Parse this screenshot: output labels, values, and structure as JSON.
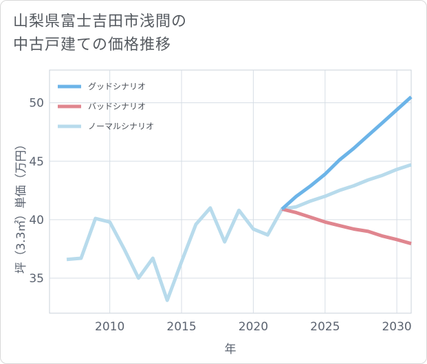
{
  "title": {
    "line1": "山梨県富士吉田市浅間の",
    "line2": "中古戸建ての価格推移"
  },
  "chart_data": {
    "type": "line",
    "title": "山梨県富士吉田市浅間の中古戸建ての価格推移",
    "xlabel": "年",
    "ylabel": "坪（3.3㎡）単価（万円）",
    "xlim": [
      2005.8,
      2031
    ],
    "ylim": [
      32,
      52.8
    ],
    "xticks": [
      2010,
      2015,
      2020,
      2025,
      2030
    ],
    "yticks": [
      35,
      40,
      45,
      50
    ],
    "xtick_labels": [
      "2010",
      "2015",
      "2020",
      "2025",
      "2030"
    ],
    "ytick_labels": [
      "35",
      "40",
      "45",
      "50"
    ],
    "grid": true,
    "legend_position": "top-left",
    "series": [
      {
        "name": "グッドシナリオ",
        "color": "#6cb4e8",
        "x": [
          2022,
          2023,
          2024,
          2025,
          2026,
          2027,
          2028,
          2029,
          2030,
          2031
        ],
        "values": [
          40.9,
          42.0,
          42.9,
          43.9,
          45.1,
          46.1,
          47.2,
          48.3,
          49.4,
          50.5
        ]
      },
      {
        "name": "バッドシナリオ",
        "color": "#e0868f",
        "x": [
          2022,
          2023,
          2024,
          2025,
          2026,
          2027,
          2028,
          2029,
          2030,
          2031
        ],
        "values": [
          40.9,
          40.6,
          40.2,
          39.8,
          39.5,
          39.2,
          39.0,
          38.6,
          38.3,
          37.95
        ]
      },
      {
        "name": "ノーマルシナリオ",
        "color": "#b8dbec",
        "x": [
          2007,
          2008,
          2009,
          2010,
          2011,
          2012,
          2013,
          2014,
          2015,
          2016,
          2017,
          2018,
          2019,
          2020,
          2021,
          2022,
          2023,
          2024,
          2025,
          2026,
          2027,
          2028,
          2029,
          2030,
          2031
        ],
        "values": [
          36.6,
          36.7,
          40.1,
          39.8,
          37.5,
          35.0,
          36.7,
          33.1,
          36.4,
          39.6,
          41.0,
          38.1,
          40.8,
          39.2,
          38.7,
          40.9,
          41.1,
          41.6,
          42.0,
          42.5,
          42.9,
          43.4,
          43.8,
          44.3,
          44.7
        ]
      }
    ]
  }
}
